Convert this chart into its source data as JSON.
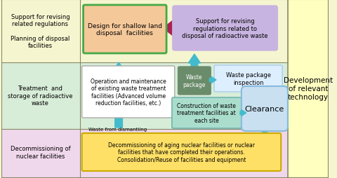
{
  "bg_top": "#f5f5d0",
  "bg_mid": "#d8edd8",
  "bg_bot": "#f0d8ec",
  "bg_right_fill": "#ffffc0",
  "border_color": "#888866",
  "label_top_left": "Support for revising\nrelated regulations\n\nPlanning of disposal\nfacilities",
  "label_mid_left": "Treatment  and\nstorage of radioactive\nwaste",
  "label_bot_left": "Decommissioning of\nnuclear facilities",
  "label_right": "Development\nof relevant\ntechnology",
  "box_design_text": "Design for shallow land\ndisposal  facilities",
  "box_design_fill": "#f5c89a",
  "box_design_edge": "#44aa44",
  "box_support_text": "Support for revising\nregulations related to\ndisposal of radioactive waste",
  "box_support_fill": "#c8b4e0",
  "box_ops_text": "Operation and maintenance\nof existing waste treatment\nfacilities (Advanced volume\nreduction facilities, etc.)",
  "box_ops_fill": "#ffffff",
  "box_ops_edge": "#aaaaaa",
  "box_wp_text": "Waste\npackage",
  "box_wp_fill": "#6b8c6b",
  "box_wpi_text": "Waste package\ninspection",
  "box_wpi_fill": "#ddeeff",
  "box_wpi_edge": "#aaccee",
  "box_const_text": "Construction of waste\ntreatment facilities at\neach site",
  "box_const_fill": "#aaddcc",
  "box_const_edge": "#66aaaa",
  "box_clear_text": "Clearance",
  "box_clear_fill": "#c8e0f0",
  "box_clear_edge": "#88bbdd",
  "box_decom_text": "Decommissioning of aging nuclear facilities or nuclear\nfacilities that have completed their operations.\nConsolidation/Reuse of facilities and equipment",
  "box_decom_fill": "#ffe066",
  "box_decom_edge": "#ccaa00",
  "teal": "#44bbcc",
  "pink": "#aa2255",
  "waste_label": "Waste from dismantling"
}
